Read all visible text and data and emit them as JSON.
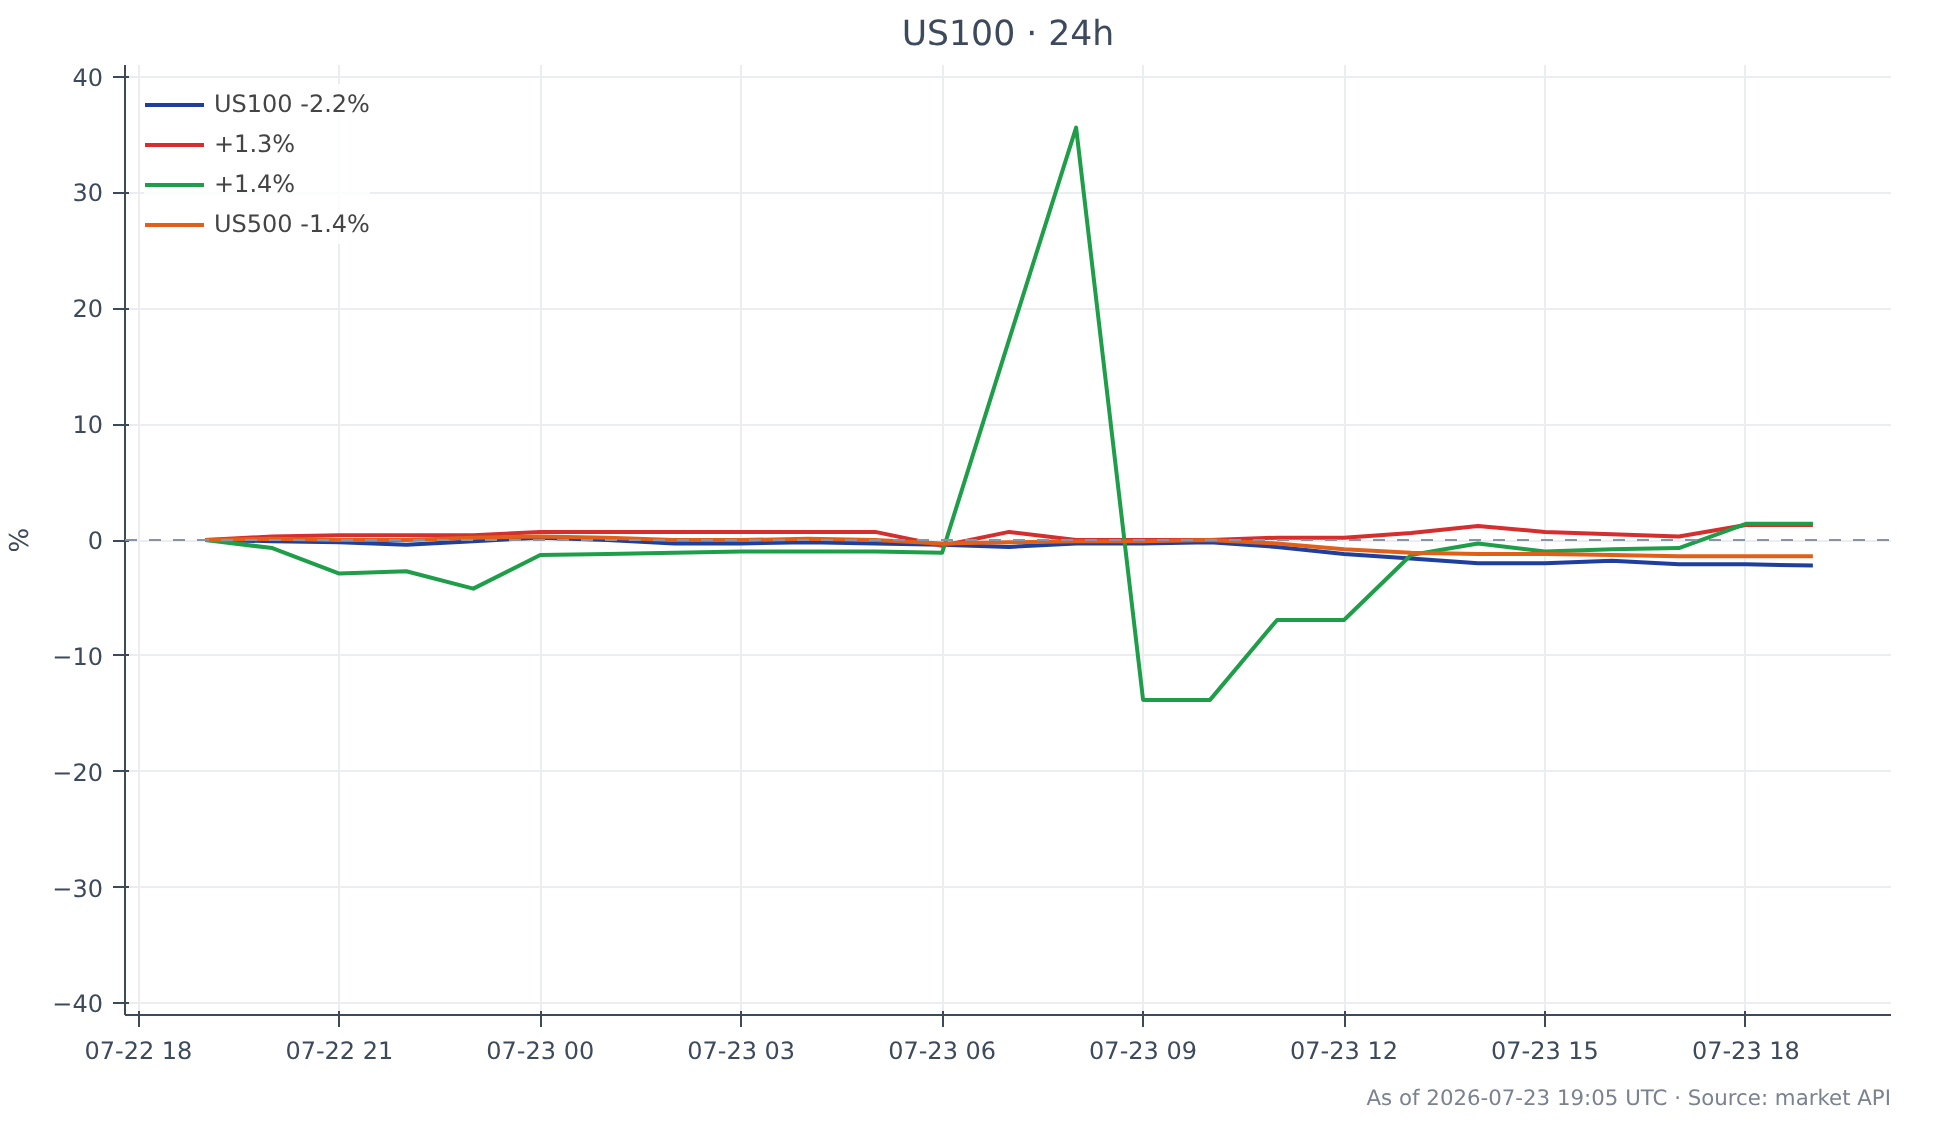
{
  "chart_data": {
    "type": "line",
    "title": "US100 · 24h",
    "ylabel": "%",
    "x": [
      "2026-07-22T19:00",
      "2026-07-22T20:00",
      "2026-07-22T21:00",
      "2026-07-22T22:00",
      "2026-07-22T23:00",
      "2026-07-23T00:00",
      "2026-07-23T01:00",
      "2026-07-23T02:00",
      "2026-07-23T03:00",
      "2026-07-23T04:00",
      "2026-07-23T05:00",
      "2026-07-23T06:00",
      "2026-07-23T07:00",
      "2026-07-23T08:00",
      "2026-07-23T09:00",
      "2026-07-23T10:00",
      "2026-07-23T11:00",
      "2026-07-23T12:00",
      "2026-07-23T13:00",
      "2026-07-23T14:00",
      "2026-07-23T15:00",
      "2026-07-23T16:00",
      "2026-07-23T17:00",
      "2026-07-23T18:00",
      "2026-07-23T19:00"
    ],
    "series": [
      {
        "name": "US100 -2.2%",
        "color": "#1f3f9f",
        "values": [
          0,
          -0.1,
          -0.2,
          -0.4,
          -0.1,
          0.2,
          0,
          -0.3,
          -0.3,
          -0.2,
          -0.3,
          -0.4,
          -0.6,
          -0.3,
          -0.3,
          -0.2,
          -0.6,
          -1.2,
          -1.6,
          -2.0,
          -2.0,
          -1.8,
          -2.1,
          -2.1,
          -2.2
        ]
      },
      {
        "name": "+1.3%",
        "color": "#d62d2d",
        "values": [
          0,
          0.3,
          0.4,
          0.4,
          0.4,
          0.7,
          0.7,
          0.7,
          0.7,
          0.7,
          0.7,
          -0.5,
          0.7,
          0,
          0,
          0,
          0.2,
          0.2,
          0.6,
          1.2,
          0.7,
          0.5,
          0.3,
          1.3,
          1.3
        ]
      },
      {
        "name": "+1.4%",
        "color": "#1f9e4a",
        "values": [
          0,
          -0.7,
          -2.9,
          -2.7,
          -4.2,
          -1.3,
          -1.2,
          -1.1,
          -1.0,
          -1.0,
          -1.0,
          -1.1,
          17.3,
          35.6,
          -13.8,
          -13.8,
          -6.9,
          -6.9,
          -1.3,
          -0.3,
          -1.0,
          -0.8,
          -0.7,
          1.4,
          1.4
        ]
      },
      {
        "name": "US500 -1.4%",
        "color": "#e0601a",
        "values": [
          0,
          0.1,
          0,
          0,
          0.2,
          0.3,
          0.2,
          0,
          0,
          0.1,
          0,
          -0.3,
          -0.2,
          -0.1,
          -0.1,
          0,
          -0.3,
          -0.8,
          -1.1,
          -1.2,
          -1.2,
          -1.3,
          -1.4,
          -1.4,
          -1.4
        ]
      }
    ],
    "xlim": [
      "2026-07-22T17:48",
      "2026-07-23T20:10"
    ],
    "xticks": [
      {
        "value": "2026-07-22T18:00",
        "label": "07-22 18"
      },
      {
        "value": "2026-07-22T21:00",
        "label": "07-22 21"
      },
      {
        "value": "2026-07-23T00:00",
        "label": "07-23 00"
      },
      {
        "value": "2026-07-23T03:00",
        "label": "07-23 03"
      },
      {
        "value": "2026-07-23T06:00",
        "label": "07-23 06"
      },
      {
        "value": "2026-07-23T09:00",
        "label": "07-23 09"
      },
      {
        "value": "2026-07-23T12:00",
        "label": "07-23 12"
      },
      {
        "value": "2026-07-23T15:00",
        "label": "07-23 15"
      },
      {
        "value": "2026-07-23T18:00",
        "label": "07-23 18"
      }
    ],
    "ylim": [
      -41,
      41
    ],
    "yticks": [
      {
        "value": -40,
        "label": "−40"
      },
      {
        "value": -30,
        "label": "−30"
      },
      {
        "value": -20,
        "label": "−20"
      },
      {
        "value": -10,
        "label": "−10"
      },
      0,
      10,
      20,
      30,
      40
    ],
    "ref_lines": [
      {
        "axis": "y",
        "value": 0,
        "color": "#8a93a6",
        "line_style": "dashed"
      }
    ],
    "grid": true,
    "legend": "top left",
    "line_style": "solid",
    "marker": "none",
    "annotations": [
      "As of 2026-07-23 19:05 UTC · Source: market API"
    ]
  }
}
